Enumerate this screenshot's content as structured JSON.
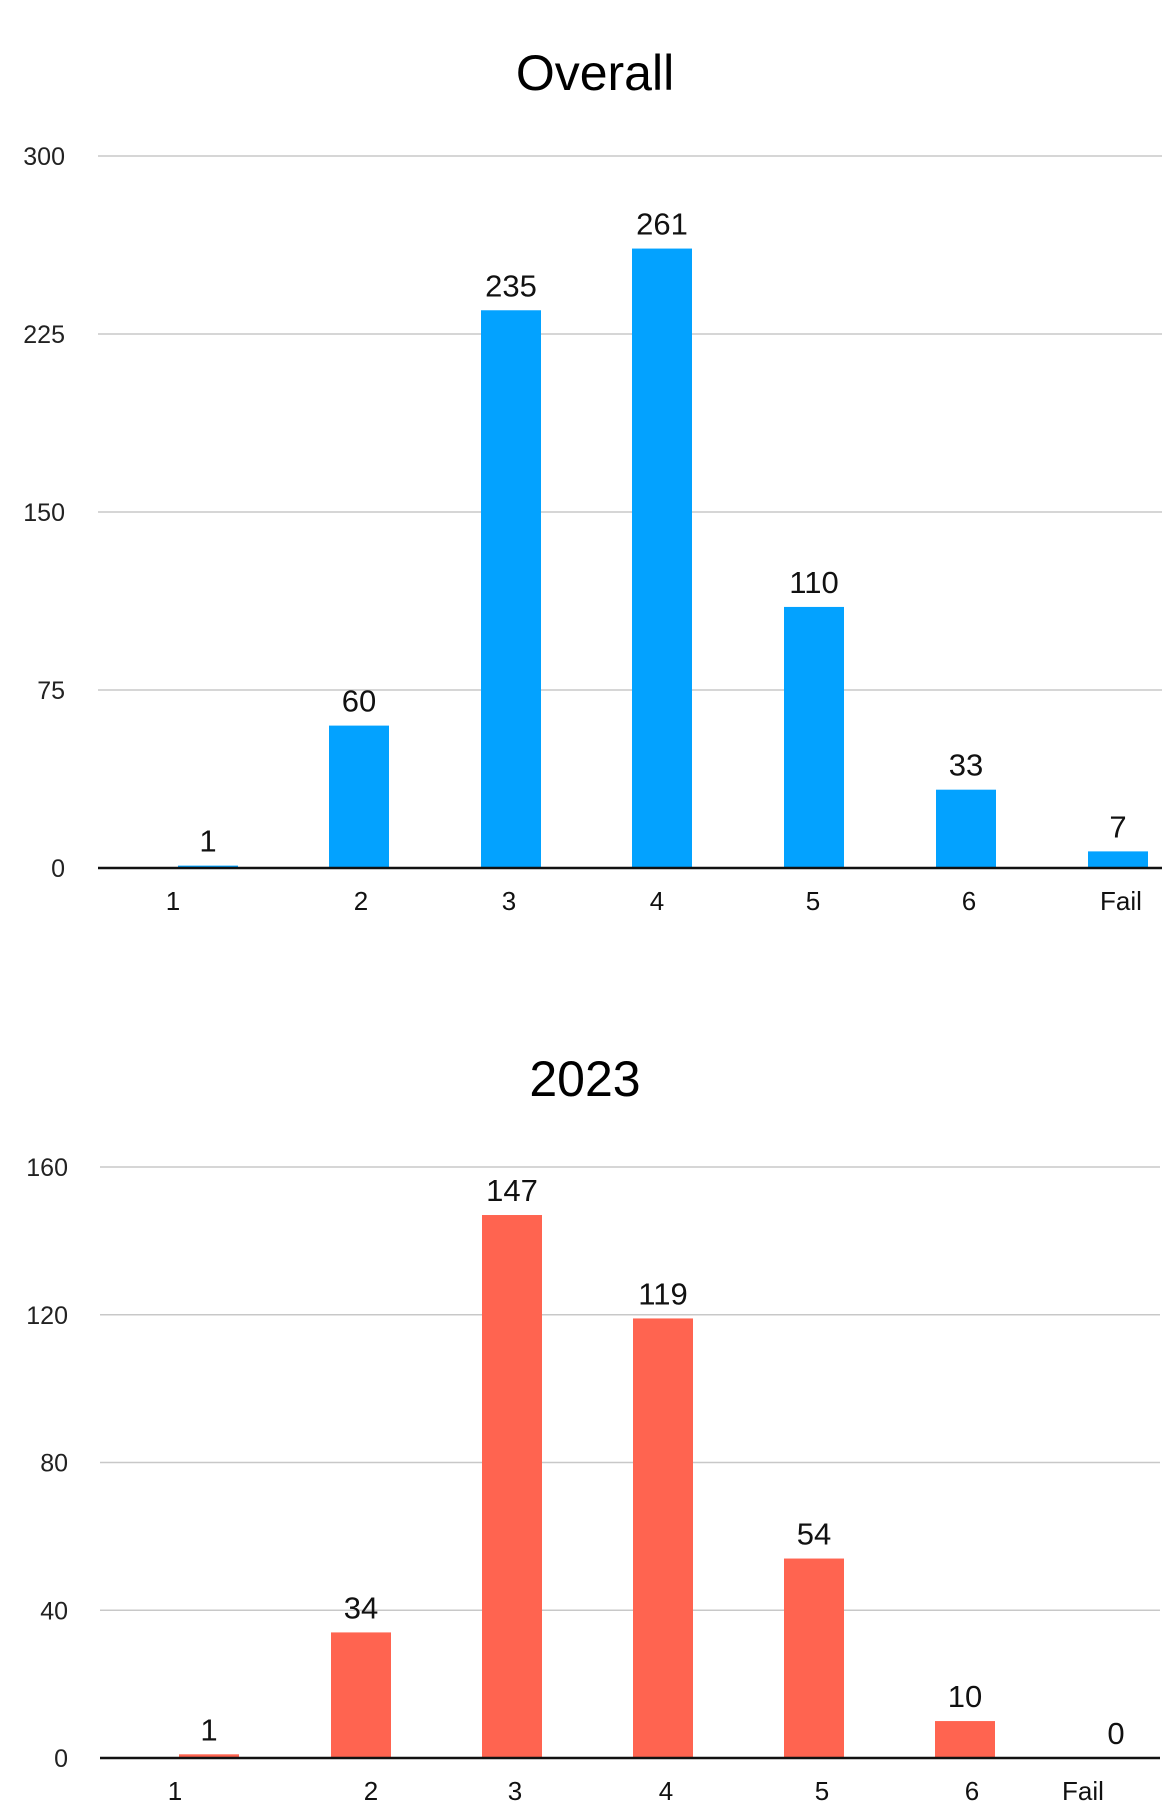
{
  "chart_data": [
    {
      "type": "bar",
      "title": "Overall",
      "categories": [
        "1",
        "2",
        "3",
        "4",
        "5",
        "6",
        "Fail"
      ],
      "values": [
        1,
        60,
        235,
        261,
        110,
        33,
        7
      ],
      "yticks": [
        "0",
        "75",
        "150",
        "225",
        "300"
      ],
      "ylim": [
        0,
        300
      ],
      "xlabel": "",
      "ylabel": "",
      "grid": true,
      "legend": "none",
      "color": "#03A2FF"
    },
    {
      "type": "bar",
      "title": "2023",
      "categories": [
        "1",
        "2",
        "3",
        "4",
        "5",
        "6",
        "Fail"
      ],
      "values": [
        1,
        34,
        147,
        119,
        54,
        10,
        0
      ],
      "yticks": [
        "0",
        "40",
        "80",
        "120",
        "160"
      ],
      "ylim": [
        0,
        160
      ],
      "xlabel": "",
      "ylabel": "",
      "grid": true,
      "legend": "none",
      "color": "#FF6450"
    }
  ]
}
